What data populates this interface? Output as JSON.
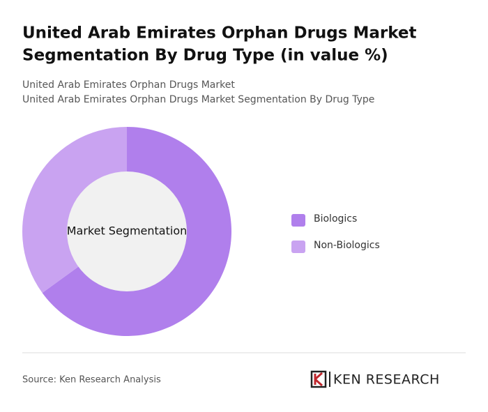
{
  "chart_data": {
    "type": "pie",
    "title": [
      "United Arab Emirates Orphan Drugs Market",
      "Segmentation By Drug Type (in value %)"
    ],
    "subtitle": [
      "United Arab Emirates Orphan Drugs Market",
      "United Arab Emirates Orphan Drugs Market Segmentation By Drug Type"
    ],
    "center_label": "Market Segmentation",
    "categories": [
      "Biologics",
      "Non-Biologics"
    ],
    "values": [
      65,
      35
    ],
    "colors": [
      "#b07fec",
      "#c9a3f1"
    ],
    "source": "Source: Ken Research Analysis",
    "logo": "KEN RESEARCH"
  }
}
